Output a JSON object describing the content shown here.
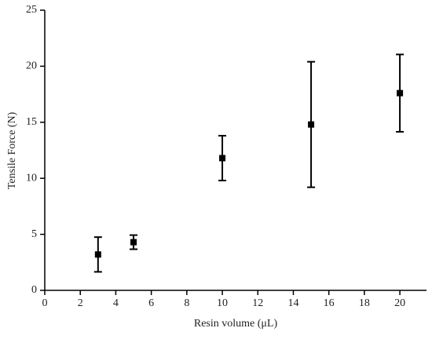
{
  "chart_data": {
    "type": "scatter",
    "x_label": "Resin volume (μL)",
    "y_label": "Tensile Force (N)",
    "series": [
      {
        "x": [
          3,
          5,
          10,
          15,
          20
        ],
        "values": [
          3.2,
          4.3,
          11.8,
          14.8,
          17.6
        ],
        "yerr": [
          1.55,
          0.63,
          2.0,
          5.6,
          3.45
        ],
        "color": "#000000"
      }
    ],
    "xlim": [
      0,
      21.5
    ],
    "xticks": [
      0,
      2,
      4,
      6,
      8,
      10,
      12,
      14,
      16,
      18,
      20
    ],
    "ylim": [
      0,
      25
    ],
    "yticks": [
      0,
      5,
      10,
      15,
      20,
      25
    ]
  }
}
